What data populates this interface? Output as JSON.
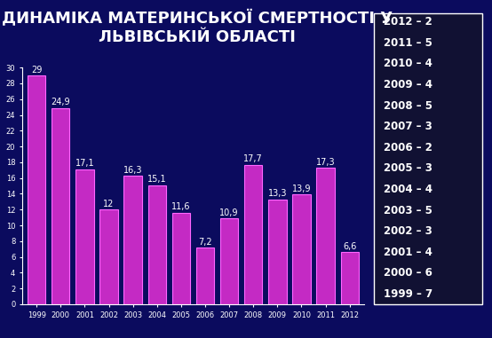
{
  "chart_data": {
    "type": "bar",
    "title": "ДИНАМІКА МАТЕРИНСЬКОЇ СМЕРТНОСТІ У ЛЬВІВСЬКІЙ ОБЛАСТІ",
    "categories": [
      "1999",
      "2000",
      "2001",
      "2002",
      "2003",
      "2004",
      "2005",
      "2006",
      "2007",
      "2008",
      "2009",
      "2010",
      "2011",
      "2012"
    ],
    "values": [
      29,
      24.9,
      17.1,
      12,
      16.3,
      15.1,
      11.6,
      7.2,
      10.9,
      17.7,
      13.3,
      13.9,
      17.3,
      6.6
    ],
    "value_labels": [
      "29",
      "24,9",
      "17,1",
      "12",
      "16,3",
      "15,1",
      "11,6",
      "7,2",
      "10,9",
      "17,7",
      "13,3",
      "13,9",
      "17,3",
      "6,6"
    ],
    "data_labels": true,
    "color": "#c42ac4",
    "ylim": [
      0,
      30
    ],
    "yticks": [
      0,
      2,
      4,
      6,
      8,
      10,
      12,
      14,
      16,
      18,
      20,
      22,
      24,
      26,
      28,
      30
    ],
    "grid": false,
    "side_list": [
      "2012 – 2",
      "2011 – 5",
      "2010 – 4",
      "2009 – 4",
      "2008 – 5",
      "2007 – 3",
      "2006 – 2",
      "2005 – 3",
      "2004 – 4",
      "2003 – 5",
      "2002 – 3",
      "2001 – 4",
      "2000 – 6",
      "1999 – 7"
    ]
  }
}
